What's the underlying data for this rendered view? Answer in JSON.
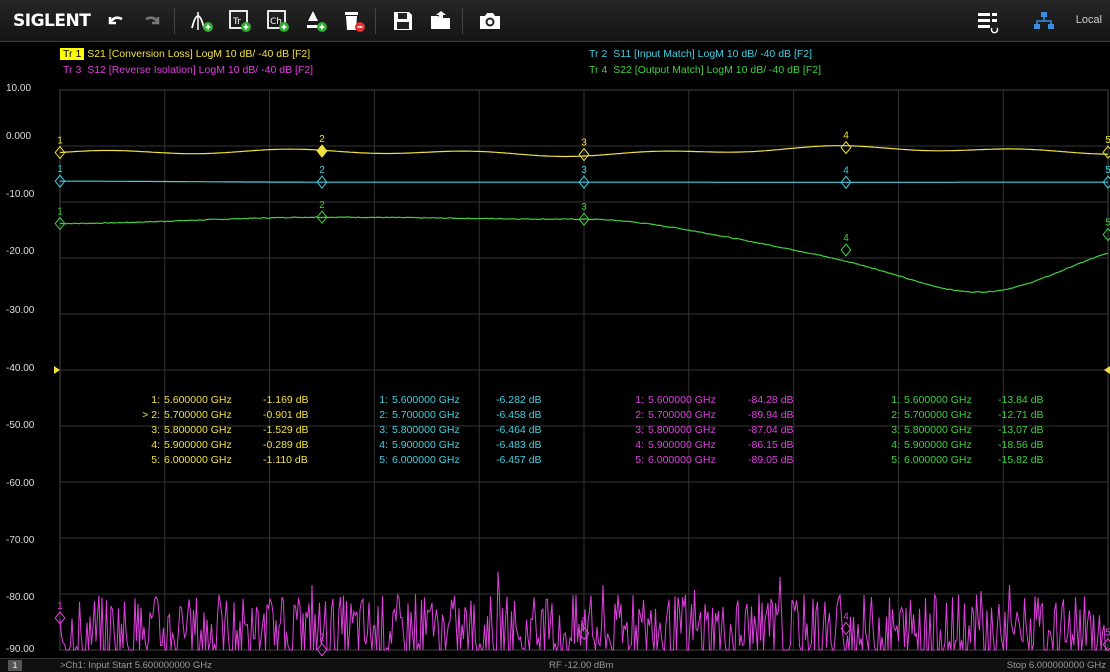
{
  "toolbar": {
    "logo": "SIGLENT",
    "local_label": "Local",
    "buttons": [
      "undo-icon",
      "redo-icon",
      "add-marker-icon",
      "add-trace-icon",
      "add-channel-icon",
      "marker-search-icon",
      "delete-icon",
      "save-icon",
      "open-icon",
      "camera-icon"
    ]
  },
  "traces": [
    {
      "id": "Tr 1",
      "label": "S21 [Conversion Loss]  LogM  10 dB/  -40 dB  [F2]",
      "color": "#f0e040",
      "active": true
    },
    {
      "id": "Tr 2",
      "label": "S11 [Input Match]  LogM  10 dB/  -40 dB  [F2]",
      "color": "#40d0e0",
      "active": false
    },
    {
      "id": "Tr 3",
      "label": "S12 [Reverse Isolation]  LogM  10 dB/  -40 dB  [F2]",
      "color": "#e040e0",
      "active": false
    },
    {
      "id": "Tr 4",
      "label": "S22 [Output Match]  LogM  10 dB/  -40 dB  [F2]",
      "color": "#40d040",
      "active": false
    }
  ],
  "y_axis": {
    "labels": [
      "10.00",
      "0.000",
      "-10.00",
      "-20.00",
      "-30.00",
      "-40.00",
      "-50.00",
      "-60.00",
      "-70.00",
      "-80.00",
      "-90.00"
    ],
    "ref_level": -40
  },
  "markers": [
    {
      "color": "#f0e040",
      "rows": [
        {
          "n": "1:",
          "freq": "5.600000 GHz",
          "val": "-1.169 dB"
        },
        {
          "n": "> 2:",
          "freq": "5.700000 GHz",
          "val": "-0.901 dB"
        },
        {
          "n": "3:",
          "freq": "5.800000 GHz",
          "val": "-1.529 dB"
        },
        {
          "n": "4:",
          "freq": "5.900000 GHz",
          "val": "-0.289 dB"
        },
        {
          "n": "5:",
          "freq": "6.000000 GHz",
          "val": "-1.110 dB"
        }
      ]
    },
    {
      "color": "#40d0e0",
      "rows": [
        {
          "n": "1:",
          "freq": "5.600000 GHz",
          "val": "-6.282 dB"
        },
        {
          "n": "2:",
          "freq": "5.700000 GHz",
          "val": "-6.458 dB"
        },
        {
          "n": "3:",
          "freq": "5.800000 GHz",
          "val": "-6.464 dB"
        },
        {
          "n": "4:",
          "freq": "5.900000 GHz",
          "val": "-6.483 dB"
        },
        {
          "n": "5:",
          "freq": "6.000000 GHz",
          "val": "-6.457 dB"
        }
      ]
    },
    {
      "color": "#e040e0",
      "rows": [
        {
          "n": "1:",
          "freq": "5.600000 GHz",
          "val": "-84.28 dB"
        },
        {
          "n": "2:",
          "freq": "5.700000 GHz",
          "val": "-89.94 dB"
        },
        {
          "n": "3:",
          "freq": "5.800000 GHz",
          "val": "-87.04 dB"
        },
        {
          "n": "4:",
          "freq": "5.900000 GHz",
          "val": "-86.15 dB"
        },
        {
          "n": "5:",
          "freq": "6.000000 GHz",
          "val": "-89.05 dB"
        }
      ]
    },
    {
      "color": "#40d040",
      "rows": [
        {
          "n": "1:",
          "freq": "5.600000 GHz",
          "val": "-13.84 dB"
        },
        {
          "n": "2:",
          "freq": "5.700000 GHz",
          "val": "-12.71 dB"
        },
        {
          "n": "3:",
          "freq": "5.800000 GHz",
          "val": "-13.07 dB"
        },
        {
          "n": "4:",
          "freq": "5.900000 GHz",
          "val": "-18.56 dB"
        },
        {
          "n": "5:",
          "freq": "6.000000 GHz",
          "val": "-15.82 dB"
        }
      ]
    }
  ],
  "status": {
    "channel": "1",
    "start": ">Ch1: Input Start 5.600000000 GHz",
    "power": "RF -12.00 dBm",
    "stop": "Stop 6.000000000 GHz"
  }
}
